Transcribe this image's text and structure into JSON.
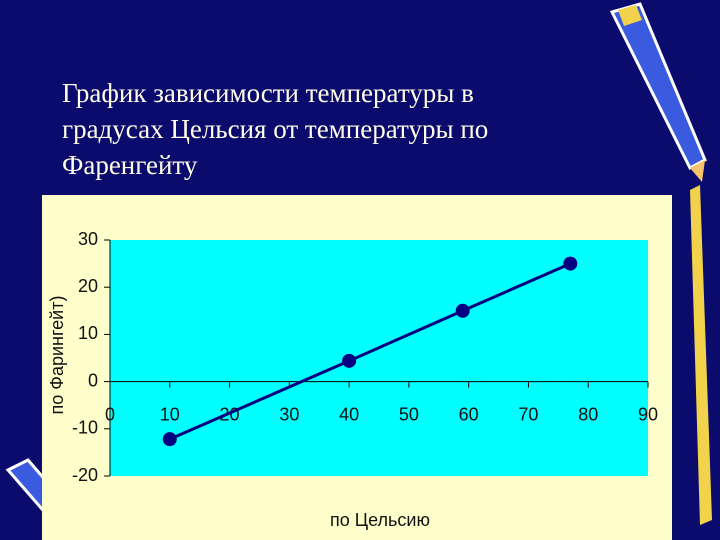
{
  "chart_data": {
    "type": "line",
    "title": [
      "График зависимости температуры в",
      "градусах Цельсия от температуры по",
      "Фаренгейту"
    ],
    "x_label": "по Цельсию",
    "y_label": "по Фарингейт)",
    "x": [
      10,
      40,
      59,
      77
    ],
    "values": [
      -12.2,
      4.4,
      15,
      25
    ],
    "color": "#000080",
    "xlim": [
      0,
      90
    ],
    "xticks": [
      0,
      10,
      20,
      30,
      40,
      50,
      60,
      70,
      80,
      90
    ],
    "ylim": [
      -20,
      30
    ],
    "yticks": [
      -20,
      -10,
      0,
      10,
      20,
      30
    ],
    "grid": false
  }
}
